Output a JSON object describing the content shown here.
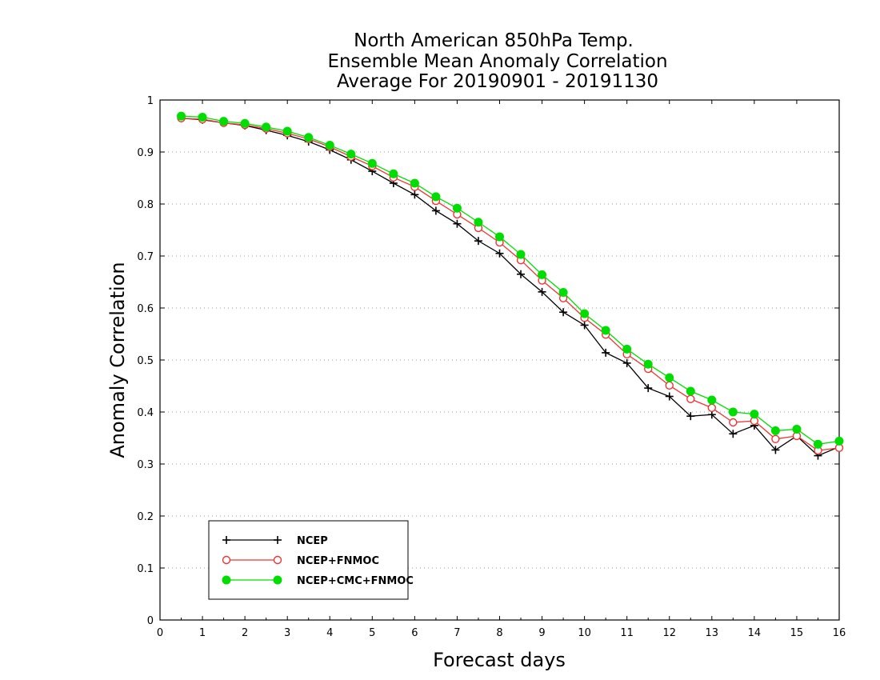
{
  "chart_data": {
    "type": "line",
    "title_lines": [
      "North American 850hPa Temp.",
      "Ensemble Mean Anomaly Correlation",
      "Average For 20190901 - 20191130"
    ],
    "xlabel": "Forecast days",
    "ylabel": "Anomaly Correlation",
    "xlim": [
      0,
      16
    ],
    "ylim": [
      0,
      1
    ],
    "x_ticks": [
      "0",
      "1",
      "2",
      "3",
      "4",
      "5",
      "6",
      "7",
      "8",
      "9",
      "10",
      "11",
      "12",
      "13",
      "14",
      "15",
      "16"
    ],
    "y_ticks": [
      "0",
      "0.1",
      "0.2",
      "0.3",
      "0.4",
      "0.5",
      "0.6",
      "0.7",
      "0.8",
      "0.9",
      "1"
    ],
    "grid": "horizontal dotted",
    "legend_position": "bottom-left",
    "x": [
      0.5,
      1,
      1.5,
      2,
      2.5,
      3,
      3.5,
      4,
      4.5,
      5,
      5.5,
      6,
      6.5,
      7,
      7.5,
      8,
      8.5,
      9,
      9.5,
      10,
      10.5,
      11,
      11.5,
      12,
      12.5,
      13,
      13.5,
      14,
      14.5,
      15,
      15.5,
      16
    ],
    "series": [
      {
        "name": "NCEP",
        "color": "#000000",
        "marker": "plus",
        "values": [
          0.965,
          0.962,
          0.956,
          0.951,
          0.942,
          0.932,
          0.92,
          0.904,
          0.885,
          0.863,
          0.84,
          0.818,
          0.787,
          0.762,
          0.729,
          0.705,
          0.665,
          0.631,
          0.592,
          0.567,
          0.514,
          0.494,
          0.446,
          0.43,
          0.392,
          0.395,
          0.358,
          0.374,
          0.327,
          0.354,
          0.316,
          0.333
        ]
      },
      {
        "name": "NCEP+FNMOC",
        "color": "#ee3333",
        "marker": "open-circle",
        "values": [
          0.965,
          0.963,
          0.956,
          0.952,
          0.945,
          0.936,
          0.925,
          0.91,
          0.891,
          0.873,
          0.851,
          0.833,
          0.806,
          0.78,
          0.754,
          0.726,
          0.692,
          0.653,
          0.619,
          0.581,
          0.549,
          0.511,
          0.483,
          0.451,
          0.425,
          0.408,
          0.38,
          0.383,
          0.348,
          0.354,
          0.326,
          0.331
        ]
      },
      {
        "name": "NCEP+CMC+FNMOC",
        "color": "#00dd00",
        "marker": "filled-circle",
        "values": [
          0.969,
          0.967,
          0.959,
          0.955,
          0.948,
          0.94,
          0.928,
          0.913,
          0.896,
          0.878,
          0.858,
          0.84,
          0.814,
          0.792,
          0.765,
          0.737,
          0.703,
          0.664,
          0.63,
          0.589,
          0.557,
          0.521,
          0.492,
          0.466,
          0.44,
          0.423,
          0.4,
          0.396,
          0.364,
          0.367,
          0.338,
          0.344
        ]
      }
    ]
  }
}
